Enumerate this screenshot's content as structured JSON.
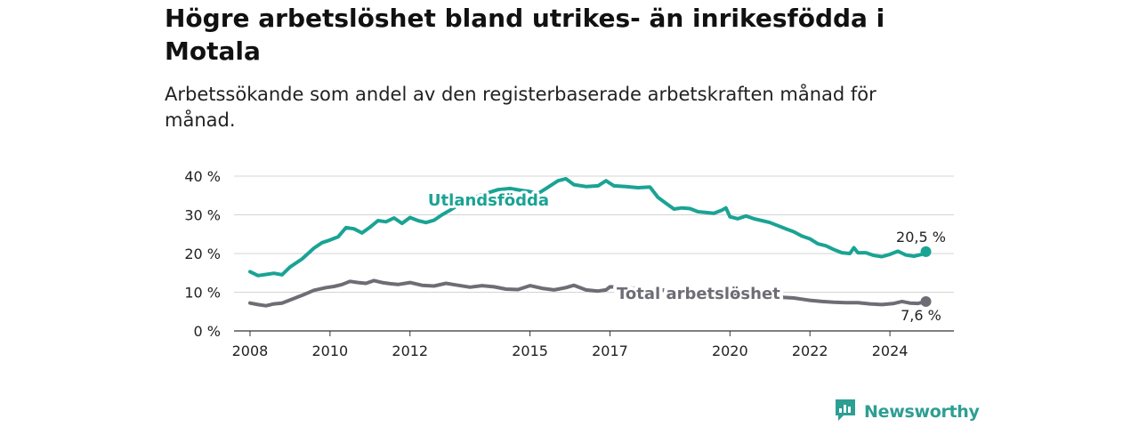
{
  "title": "Högre arbetslöshet bland utrikes- än inrikesfödda i Motala",
  "subtitle": "Arbetssökande som andel av den registerbaserade arbetskraften månad för månad.",
  "brand": {
    "name": "Newsworthy",
    "color": "#2e9e93",
    "icon": "newsworthy-chart-bubble-icon"
  },
  "chart_data": {
    "type": "line",
    "x_ticks": [
      2008,
      2010,
      2012,
      2015,
      2017,
      2020,
      2022,
      2024
    ],
    "y_ticks": [
      0,
      10,
      20,
      30,
      40
    ],
    "y_tick_labels": [
      "0 %",
      "10 %",
      "20 %",
      "30 %",
      "40 %"
    ],
    "ylim": [
      0,
      40
    ],
    "xlim": [
      2007.6,
      2025.6
    ],
    "grid": true,
    "series": [
      {
        "name": "Utlandsfödda",
        "color": "#1aa394",
        "end_label": "20,5 %",
        "points": [
          [
            2008.0,
            15.3
          ],
          [
            2008.2,
            14.3
          ],
          [
            2008.4,
            14.6
          ],
          [
            2008.6,
            14.9
          ],
          [
            2008.8,
            14.5
          ],
          [
            2009.0,
            16.5
          ],
          [
            2009.3,
            18.6
          ],
          [
            2009.6,
            21.4
          ],
          [
            2009.8,
            22.8
          ],
          [
            2010.0,
            23.5
          ],
          [
            2010.2,
            24.3
          ],
          [
            2010.4,
            26.7
          ],
          [
            2010.6,
            26.4
          ],
          [
            2010.8,
            25.3
          ],
          [
            2011.0,
            26.8
          ],
          [
            2011.2,
            28.5
          ],
          [
            2011.4,
            28.2
          ],
          [
            2011.6,
            29.2
          ],
          [
            2011.8,
            27.8
          ],
          [
            2012.0,
            29.3
          ],
          [
            2012.2,
            28.5
          ],
          [
            2012.4,
            28.0
          ],
          [
            2012.6,
            28.6
          ],
          [
            2012.8,
            30.0
          ],
          [
            2013.0,
            31.2
          ],
          [
            2013.2,
            32.5
          ],
          [
            2013.5,
            34.0
          ],
          [
            2013.8,
            35.2
          ],
          [
            2014.2,
            36.5
          ],
          [
            2014.5,
            36.8
          ],
          [
            2014.8,
            36.3
          ],
          [
            2015.0,
            36.0
          ],
          [
            2015.2,
            35.5
          ],
          [
            2015.4,
            36.8
          ],
          [
            2015.7,
            38.8
          ],
          [
            2015.9,
            39.3
          ],
          [
            2016.1,
            37.8
          ],
          [
            2016.4,
            37.3
          ],
          [
            2016.7,
            37.5
          ],
          [
            2016.9,
            38.8
          ],
          [
            2017.1,
            37.5
          ],
          [
            2017.4,
            37.3
          ],
          [
            2017.7,
            37.0
          ],
          [
            2018.0,
            37.2
          ],
          [
            2018.2,
            34.5
          ],
          [
            2018.4,
            33.0
          ],
          [
            2018.6,
            31.5
          ],
          [
            2018.8,
            31.8
          ],
          [
            2019.0,
            31.6
          ],
          [
            2019.2,
            30.8
          ],
          [
            2019.4,
            30.6
          ],
          [
            2019.6,
            30.4
          ],
          [
            2019.8,
            31.2
          ],
          [
            2019.9,
            31.8
          ],
          [
            2020.0,
            29.5
          ],
          [
            2020.2,
            29.0
          ],
          [
            2020.4,
            29.7
          ],
          [
            2020.6,
            29.0
          ],
          [
            2020.8,
            28.5
          ],
          [
            2021.0,
            28.0
          ],
          [
            2021.2,
            27.2
          ],
          [
            2021.4,
            26.4
          ],
          [
            2021.6,
            25.6
          ],
          [
            2021.8,
            24.5
          ],
          [
            2022.0,
            23.8
          ],
          [
            2022.2,
            22.5
          ],
          [
            2022.4,
            22.0
          ],
          [
            2022.6,
            21.0
          ],
          [
            2022.8,
            20.2
          ],
          [
            2023.0,
            20.0
          ],
          [
            2023.1,
            21.5
          ],
          [
            2023.2,
            20.2
          ],
          [
            2023.4,
            20.2
          ],
          [
            2023.6,
            19.5
          ],
          [
            2023.8,
            19.2
          ],
          [
            2024.0,
            19.8
          ],
          [
            2024.2,
            20.6
          ],
          [
            2024.4,
            19.6
          ],
          [
            2024.6,
            19.3
          ],
          [
            2024.8,
            19.8
          ],
          [
            2024.9,
            20.5
          ]
        ]
      },
      {
        "name": "Total arbetslöshet",
        "color": "#6e6d75",
        "end_label": "7,6 %",
        "points": [
          [
            2008.0,
            7.2
          ],
          [
            2008.2,
            6.8
          ],
          [
            2008.4,
            6.5
          ],
          [
            2008.6,
            7.0
          ],
          [
            2008.8,
            7.2
          ],
          [
            2009.0,
            8.0
          ],
          [
            2009.3,
            9.2
          ],
          [
            2009.6,
            10.5
          ],
          [
            2009.9,
            11.2
          ],
          [
            2010.1,
            11.5
          ],
          [
            2010.3,
            12.0
          ],
          [
            2010.5,
            12.8
          ],
          [
            2010.7,
            12.5
          ],
          [
            2010.9,
            12.3
          ],
          [
            2011.1,
            13.0
          ],
          [
            2011.3,
            12.5
          ],
          [
            2011.5,
            12.2
          ],
          [
            2011.7,
            12.0
          ],
          [
            2012.0,
            12.5
          ],
          [
            2012.3,
            11.8
          ],
          [
            2012.6,
            11.6
          ],
          [
            2012.9,
            12.3
          ],
          [
            2013.2,
            11.8
          ],
          [
            2013.5,
            11.3
          ],
          [
            2013.8,
            11.7
          ],
          [
            2014.1,
            11.4
          ],
          [
            2014.4,
            10.8
          ],
          [
            2014.7,
            10.7
          ],
          [
            2015.0,
            11.7
          ],
          [
            2015.3,
            11.0
          ],
          [
            2015.6,
            10.6
          ],
          [
            2015.9,
            11.2
          ],
          [
            2016.1,
            11.8
          ],
          [
            2016.4,
            10.6
          ],
          [
            2016.7,
            10.3
          ],
          [
            2016.9,
            10.6
          ],
          [
            2017.0,
            11.4
          ],
          [
            2021.6,
            8.5
          ],
          [
            2021.8,
            8.2
          ],
          [
            2022.0,
            7.9
          ],
          [
            2022.3,
            7.6
          ],
          [
            2022.6,
            7.4
          ],
          [
            2022.9,
            7.3
          ],
          [
            2023.2,
            7.3
          ],
          [
            2023.5,
            7.0
          ],
          [
            2023.8,
            6.8
          ],
          [
            2024.1,
            7.1
          ],
          [
            2024.3,
            7.6
          ],
          [
            2024.5,
            7.2
          ],
          [
            2024.7,
            7.1
          ],
          [
            2024.9,
            7.6
          ]
        ]
      }
    ]
  }
}
